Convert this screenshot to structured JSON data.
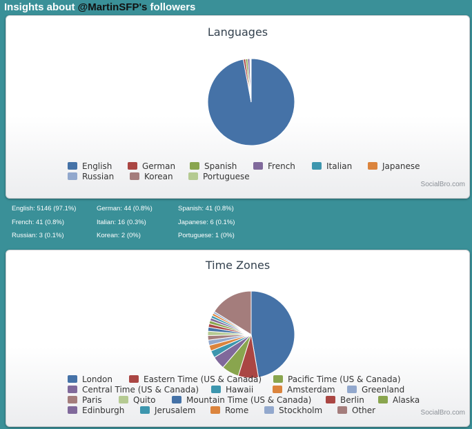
{
  "header": {
    "title_prefix": "Insights about ",
    "handle": "@MartinSFP's",
    "title_suffix": " followers"
  },
  "credits": "SocialBro.com",
  "colors": {
    "background": "#3a9098",
    "palette": [
      "#4572a7",
      "#aa4643",
      "#89a54e",
      "#80699b",
      "#3d96ae",
      "#db843d",
      "#92a8cd",
      "#a47d7c",
      "#b5ca92"
    ]
  },
  "languages_stats": [
    "English: 5146 (97.1%)",
    "German: 44 (0.8%)",
    "Spanish: 41 (0.8%)",
    "French: 41 (0.8%)",
    "Italian: 16 (0.3%)",
    "Japanese: 6 (0.1%)",
    "Russian: 3 (0.1%)",
    "Korean: 2 (0%)",
    "Portuguese: 1 (0%)"
  ],
  "chart_data": [
    {
      "type": "pie",
      "title": "Languages",
      "legend_position": "bottom",
      "slices": [
        {
          "name": "English",
          "value": 5146,
          "color": "#4572a7"
        },
        {
          "name": "German",
          "value": 44,
          "color": "#aa4643"
        },
        {
          "name": "Spanish",
          "value": 41,
          "color": "#89a54e"
        },
        {
          "name": "French",
          "value": 41,
          "color": "#80699b"
        },
        {
          "name": "Italian",
          "value": 16,
          "color": "#3d96ae"
        },
        {
          "name": "Japanese",
          "value": 6,
          "color": "#db843d"
        },
        {
          "name": "Russian",
          "value": 3,
          "color": "#92a8cd"
        },
        {
          "name": "Korean",
          "value": 2,
          "color": "#a47d7c"
        },
        {
          "name": "Portuguese",
          "value": 1,
          "color": "#b5ca92"
        }
      ]
    },
    {
      "type": "pie",
      "title": "Time Zones",
      "legend_position": "bottom",
      "slices": [
        {
          "name": "London",
          "value": 44,
          "color": "#4572a7"
        },
        {
          "name": "Eastern Time (US & Canada)",
          "value": 7,
          "color": "#aa4643"
        },
        {
          "name": "Pacific Time (US & Canada)",
          "value": 6,
          "color": "#89a54e"
        },
        {
          "name": "Central Time (US & Canada)",
          "value": 4.5,
          "color": "#80699b"
        },
        {
          "name": "Hawaii",
          "value": 2.5,
          "color": "#3d96ae"
        },
        {
          "name": "Amsterdam",
          "value": 2,
          "color": "#db843d"
        },
        {
          "name": "Greenland",
          "value": 1.8,
          "color": "#92a8cd"
        },
        {
          "name": "Paris",
          "value": 1.6,
          "color": "#a47d7c"
        },
        {
          "name": "Quito",
          "value": 1.5,
          "color": "#b5ca92"
        },
        {
          "name": "Mountain Time (US & Canada)",
          "value": 1.4,
          "color": "#4572a7"
        },
        {
          "name": "Berlin",
          "value": 1.2,
          "color": "#aa4643"
        },
        {
          "name": "Alaska",
          "value": 1.1,
          "color": "#89a54e"
        },
        {
          "name": "Edinburgh",
          "value": 1.0,
          "color": "#80699b"
        },
        {
          "name": "Jerusalem",
          "value": 0.9,
          "color": "#3d96ae"
        },
        {
          "name": "Rome",
          "value": 0.8,
          "color": "#db843d"
        },
        {
          "name": "Stockholm",
          "value": 0.7,
          "color": "#92a8cd"
        },
        {
          "name": "Other",
          "value": 15,
          "color": "#a47d7c"
        }
      ]
    }
  ]
}
